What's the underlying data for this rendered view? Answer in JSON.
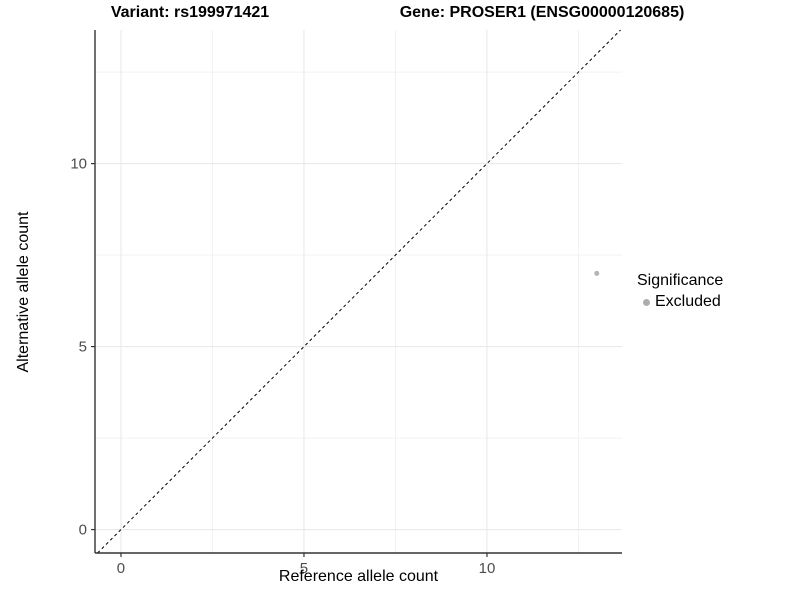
{
  "titles": {
    "variant": "Variant: rs199971421",
    "gene": "Gene: PROSER1 (ENSG00000120685)"
  },
  "chart_data": {
    "type": "scatter",
    "xlabel": "Reference allele count",
    "ylabel": "Alternative allele count",
    "xlim": [
      -0.71,
      13.69
    ],
    "ylim": [
      -0.64,
      13.65
    ],
    "x_major_ticks": [
      0,
      5,
      10
    ],
    "y_major_ticks": [
      0,
      5,
      10
    ],
    "x_minor_ticks": [
      2.5,
      7.5,
      12.5
    ],
    "y_minor_ticks": [
      2.5,
      7.5,
      12.5
    ],
    "grid": true,
    "points": [
      {
        "x": 13,
        "y": 7,
        "series": "Excluded"
      }
    ],
    "identity_line": {
      "slope": 1,
      "intercept": 0,
      "style": "dashed"
    },
    "legend": {
      "title": "Significance",
      "position": "right",
      "items": [
        {
          "label": "Excluded",
          "color": "#b4b4b4"
        }
      ]
    }
  },
  "colors": {
    "background": "#ffffff",
    "grid_major": "#e7e7e7",
    "grid_minor": "#f2f2f2",
    "axis_line": "#333333",
    "tick_label": "#4d4d4d",
    "point": "#b4b4b4",
    "legend_dot": "#adadad",
    "identity_line": "#000000",
    "text": "#000000"
  }
}
